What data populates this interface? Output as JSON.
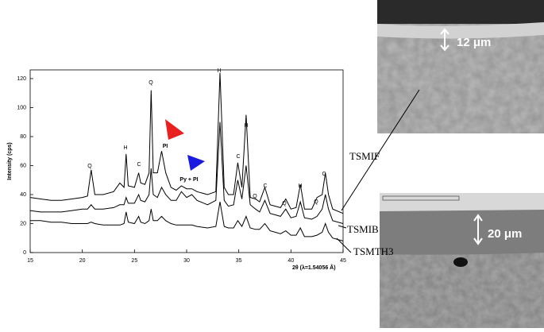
{
  "chart_data": {
    "type": "line",
    "y_label": "Intensity (cps)",
    "x_label": "2θ (λ=1.54056 Å)",
    "xlim": [
      15,
      45
    ],
    "xticks": [
      15,
      20,
      25,
      30,
      35,
      40,
      45
    ],
    "ylim": [
      0,
      126
    ],
    "yticks": [
      0,
      20,
      40,
      60,
      80,
      100,
      120
    ],
    "x": [
      15,
      16,
      17,
      18,
      19,
      20,
      20.5,
      20.85,
      21.2,
      22,
      23,
      23.6,
      24,
      24.2,
      24.4,
      25,
      25.4,
      25.6,
      26,
      26.4,
      26.6,
      26.8,
      27.2,
      27.6,
      28,
      28.5,
      29,
      29.5,
      30,
      30.5,
      31,
      32,
      32.8,
      33.2,
      33.6,
      34,
      34.5,
      34.9,
      35.3,
      35.7,
      36.1,
      36.6,
      37,
      37.5,
      38,
      38.5,
      39,
      39.5,
      40,
      40.5,
      40.9,
      41.3,
      42,
      42.5,
      43,
      43.3,
      43.6,
      44,
      45
    ],
    "series": [
      {
        "name": "TSMIF",
        "color": "#000000",
        "values": [
          38,
          37,
          36,
          36,
          37,
          38,
          39,
          57,
          40,
          40,
          42,
          48,
          45,
          68,
          46,
          45,
          55,
          48,
          47,
          55,
          112,
          55,
          55,
          70,
          55,
          45,
          43,
          46,
          44,
          44,
          42,
          40,
          42,
          124,
          45,
          40,
          40,
          62,
          45,
          95,
          38,
          37,
          35,
          45,
          33,
          32,
          31,
          37,
          30,
          31,
          47,
          30,
          30,
          38,
          40,
          55,
          40,
          30,
          27
        ]
      },
      {
        "name": "TSMIB",
        "color": "#000000",
        "values": [
          29,
          28,
          28,
          28,
          29,
          30,
          30,
          33,
          30,
          30,
          31,
          33,
          33,
          38,
          34,
          34,
          40,
          36,
          35,
          40,
          58,
          40,
          38,
          45,
          40,
          36,
          36,
          42,
          38,
          40,
          36,
          33,
          36,
          90,
          36,
          32,
          33,
          50,
          37,
          60,
          33,
          30,
          28,
          36,
          27,
          26,
          25,
          30,
          24,
          25,
          35,
          24,
          23,
          25,
          30,
          40,
          30,
          22,
          20
        ]
      },
      {
        "name": "TSMTH3",
        "color": "#000000",
        "values": [
          22,
          22,
          21,
          21,
          20,
          20,
          20,
          21,
          20,
          19,
          19,
          19,
          20,
          28,
          21,
          20,
          25,
          21,
          20,
          22,
          30,
          22,
          22,
          25,
          22,
          20,
          19,
          19,
          19,
          19,
          18,
          17,
          18,
          35,
          18,
          17,
          17,
          22,
          18,
          25,
          17,
          16,
          16,
          20,
          15,
          14,
          13,
          15,
          12,
          12,
          17,
          11,
          11,
          12,
          14,
          20,
          14,
          10,
          8
        ]
      }
    ],
    "annotations": [
      "Q",
      "H",
      "C",
      "Q",
      "PI",
      "Py + PI",
      "H",
      "C",
      "H",
      "Q",
      "C",
      "Q",
      "H",
      "Q",
      "C"
    ]
  },
  "sem_labels": [
    "12 μm",
    "20 μm"
  ]
}
